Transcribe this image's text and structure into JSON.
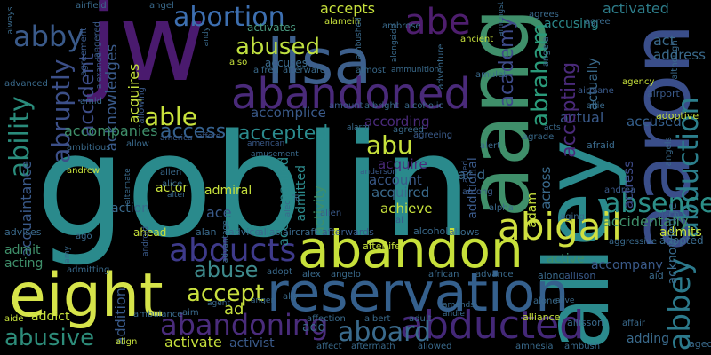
{
  "words": [
    {
      "text": "goblin",
      "color": "#2a8a8c"
    },
    {
      "text": "jw",
      "color": "#4a1a6e"
    },
    {
      "text": "aang",
      "color": "#3f8f6a"
    },
    {
      "text": "alley",
      "color": "#2b8a8d"
    },
    {
      "text": "aaron",
      "color": "#3a4e8a"
    },
    {
      "text": "lisa",
      "color": "#3d5f8c"
    },
    {
      "text": "reservation",
      "color": "#35608d"
    },
    {
      "text": "abandon",
      "color": "#c7e03a"
    },
    {
      "text": "eight",
      "color": "#d6e44a"
    },
    {
      "text": "abandoned",
      "color": "#4a2a7a"
    },
    {
      "text": "abe",
      "color": "#4e1e6e"
    },
    {
      "text": "abigail",
      "color": "#d0e040"
    },
    {
      "text": "abducted",
      "color": "#442878"
    },
    {
      "text": "abduction",
      "color": "#2c7f8c"
    },
    {
      "text": "abbey",
      "color": "#2c7a8c"
    },
    {
      "text": "ability",
      "color": "#2a8c7c"
    },
    {
      "text": "abby",
      "color": "#3a5a8a"
    },
    {
      "text": "abruptly",
      "color": "#3c4f88"
    },
    {
      "text": "abraham",
      "color": "#2a9a7a"
    },
    {
      "text": "academy",
      "color": "#3e4b89"
    },
    {
      "text": "abortion",
      "color": "#3d6fb0"
    },
    {
      "text": "abused",
      "color": "#c0e040"
    },
    {
      "text": "able",
      "color": "#c8e23c"
    },
    {
      "text": "abducts",
      "color": "#3e3a8a"
    },
    {
      "text": "abandoning",
      "color": "#4a2c7c"
    },
    {
      "text": "aboard",
      "color": "#3a6a8c"
    },
    {
      "text": "abusive",
      "color": "#2d8c7a"
    },
    {
      "text": "accept",
      "color": "#c9e03f"
    },
    {
      "text": "abuse",
      "color": "#3e8a8c"
    },
    {
      "text": "absence",
      "color": "#2c8f88"
    },
    {
      "text": "abu",
      "color": "#c7e13c"
    },
    {
      "text": "accident",
      "color": "#3d4d88"
    },
    {
      "text": "accepted",
      "color": "#2b8a8d"
    },
    {
      "text": "access",
      "color": "#35608d"
    },
    {
      "text": "accepts",
      "color": "#c7e13c"
    },
    {
      "text": "activates",
      "color": "#4a9a80"
    },
    {
      "text": "activated",
      "color": "#2d7d8a"
    },
    {
      "text": "accusing",
      "color": "#2c8a8c"
    },
    {
      "text": "act",
      "color": "#3a6a8c"
    },
    {
      "text": "address",
      "color": "#3a6a8c"
    },
    {
      "text": "acknowledges",
      "color": "#3a5a8a"
    },
    {
      "text": "acquires",
      "color": "#c7e13c"
    },
    {
      "text": "accompanies",
      "color": "#3f8f6a"
    },
    {
      "text": "accomplice",
      "color": "#3a5a8a"
    },
    {
      "text": "according",
      "color": "#4a2a7a"
    },
    {
      "text": "actual",
      "color": "#3a5a8a"
    },
    {
      "text": "accepting",
      "color": "#4a2a7a"
    },
    {
      "text": "actually",
      "color": "#3a6a8c"
    },
    {
      "text": "accused",
      "color": "#35608d"
    },
    {
      "text": "actress",
      "color": "#3e4b89"
    },
    {
      "text": "accidentally",
      "color": "#3f8f6a"
    },
    {
      "text": "admits",
      "color": "#c7e13c"
    },
    {
      "text": "adopted",
      "color": "#3a6a8c"
    },
    {
      "text": "acknowledge",
      "color": "#3a6a8c"
    },
    {
      "text": "acquaintance",
      "color": "#3a5a8a"
    },
    {
      "text": "accompanied",
      "color": "#2c8a8c"
    },
    {
      "text": "admitted",
      "color": "#2c8a8c"
    },
    {
      "text": "activity",
      "color": "#3f8f6a"
    },
    {
      "text": "account",
      "color": "#3a5a8a"
    },
    {
      "text": "acquired",
      "color": "#3a6a8c"
    },
    {
      "text": "acquire",
      "color": "#4a2a7a"
    },
    {
      "text": "acid",
      "color": "#3a6a8c"
    },
    {
      "text": "achieve",
      "color": "#c7e13c"
    },
    {
      "text": "additional",
      "color": "#3a5a8a"
    },
    {
      "text": "across",
      "color": "#3a6a8c"
    },
    {
      "text": "adam",
      "color": "#c7e13c"
    },
    {
      "text": "actor",
      "color": "#c7e13c"
    },
    {
      "text": "admiral",
      "color": "#c7e13c"
    },
    {
      "text": "action",
      "color": "#3a6a8c"
    },
    {
      "text": "ace",
      "color": "#3a5a8a"
    },
    {
      "text": "active",
      "color": "#3f8f6a"
    },
    {
      "text": "accompany",
      "color": "#3a5a8a"
    },
    {
      "text": "addict",
      "color": "#c7e13c"
    },
    {
      "text": "ad",
      "color": "#c7e13c"
    },
    {
      "text": "add",
      "color": "#3a6a8c"
    },
    {
      "text": "adding",
      "color": "#3a6a8c"
    },
    {
      "text": "activate",
      "color": "#c7e13c"
    },
    {
      "text": "activist",
      "color": "#3a5a8a"
    },
    {
      "text": "admit",
      "color": "#3f8f6a"
    },
    {
      "text": "acting",
      "color": "#3f8f6a"
    },
    {
      "text": "addition",
      "color": "#3a5a8a"
    },
    {
      "text": "afterlife",
      "color": "#c7e13c"
    },
    {
      "text": "alcohol",
      "color": "#3a6a8c"
    },
    {
      "text": "allows",
      "color": "#3a6a8c"
    },
    {
      "text": "alias",
      "color": "#3a6a8c"
    },
    {
      "text": "aircraft",
      "color": "#3a6a8c"
    },
    {
      "text": "afterwards",
      "color": "#3a5a8a"
    },
    {
      "text": "advice",
      "color": "#3a6a8c"
    },
    {
      "text": "alan",
      "color": "#3a6a8c"
    },
    {
      "text": "ahead",
      "color": "#c7e13c"
    },
    {
      "text": "advises",
      "color": "#3a6a8c"
    },
    {
      "text": "ago",
      "color": "#3a6a8c"
    },
    {
      "text": "andrew",
      "color": "#c7e13c"
    },
    {
      "text": "allen",
      "color": "#3a6a8c"
    },
    {
      "text": "alice",
      "color": "#3a6a8c"
    },
    {
      "text": "alter",
      "color": "#3a6a8c"
    },
    {
      "text": "airfield",
      "color": "#3a6a8c"
    },
    {
      "text": "agrees",
      "color": "#3a6a8c"
    },
    {
      "text": "angel",
      "color": "#3a6a8c"
    },
    {
      "text": "alamein",
      "color": "#c7e13c"
    },
    {
      "text": "amongst",
      "color": "#3a6a8c"
    },
    {
      "text": "angela",
      "color": "#3a6a8c"
    },
    {
      "text": "ambrose",
      "color": "#3a6a8c"
    },
    {
      "text": "ancient",
      "color": "#c7e13c"
    },
    {
      "text": "agree",
      "color": "#3a6a8c"
    },
    {
      "text": "agency",
      "color": "#c7e13c"
    },
    {
      "text": "airport",
      "color": "#3a5a8a"
    },
    {
      "text": "airplane",
      "color": "#3a5a8a"
    },
    {
      "text": "although",
      "color": "#3a6a8c"
    },
    {
      "text": "adoptive",
      "color": "#c7e13c"
    },
    {
      "text": "afraid",
      "color": "#3a6a8c"
    },
    {
      "text": "angels",
      "color": "#3a6a8c"
    },
    {
      "text": "allie",
      "color": "#3a6a8c"
    },
    {
      "text": "agrade",
      "color": "#3a6a8c"
    },
    {
      "text": "amulet",
      "color": "#3a6a8c"
    },
    {
      "text": "adventure",
      "color": "#3a6a8c"
    },
    {
      "text": "almost",
      "color": "#3a6a8c"
    },
    {
      "text": "albright",
      "color": "#3a6a8c"
    },
    {
      "text": "alcoholic",
      "color": "#3a6a8c"
    },
    {
      "text": "agreed",
      "color": "#3a6a8c"
    },
    {
      "text": "agreeing",
      "color": "#3a5a8a"
    },
    {
      "text": "alert",
      "color": "#3a6a8c"
    },
    {
      "text": "amount",
      "color": "#3a5a8a"
    },
    {
      "text": "ambitious",
      "color": "#3a6a8c"
    },
    {
      "text": "amid",
      "color": "#3a6a8c"
    },
    {
      "text": "allowing",
      "color": "#3a5a8a"
    },
    {
      "text": "alexander",
      "color": "#3a5a8a"
    },
    {
      "text": "advanced",
      "color": "#3a6a8c"
    },
    {
      "text": "always",
      "color": "#3a6a8c"
    },
    {
      "text": "agreement",
      "color": "#3a5a8a"
    },
    {
      "text": "angered",
      "color": "#3a5a8a"
    },
    {
      "text": "also",
      "color": "#c7e13c"
    },
    {
      "text": "alfred",
      "color": "#3a6a8c"
    },
    {
      "text": "afterward",
      "color": "#3a6a8c"
    },
    {
      "text": "accuses",
      "color": "#3a6a8c"
    },
    {
      "text": "alongside",
      "color": "#3a6a8c"
    },
    {
      "text": "ambushed",
      "color": "#3a6a8c"
    },
    {
      "text": "african",
      "color": "#3a6a8c"
    },
    {
      "text": "advance",
      "color": "#3a6a8c"
    },
    {
      "text": "along",
      "color": "#3a6a8c"
    },
    {
      "text": "allison",
      "color": "#3a5a8a"
    },
    {
      "text": "aid",
      "color": "#3a6a8c"
    },
    {
      "text": "alien",
      "color": "#3a5a8a"
    },
    {
      "text": "alpha",
      "color": "#3a6a8c"
    },
    {
      "text": "among",
      "color": "#3a5a8a"
    },
    {
      "text": "aging",
      "color": "#3a6a8c"
    },
    {
      "text": "andrea",
      "color": "#3a5a8a"
    },
    {
      "text": "alerted",
      "color": "#3a5a8a"
    },
    {
      "text": "aggressive",
      "color": "#3a6a8c"
    },
    {
      "text": "alex",
      "color": "#3a6a8c"
    },
    {
      "text": "angelo",
      "color": "#3a6a8c"
    },
    {
      "text": "adopt",
      "color": "#3a6a8c"
    },
    {
      "text": "ally",
      "color": "#3a6a8c"
    },
    {
      "text": "aide",
      "color": "#c7e13c"
    },
    {
      "text": "ambulance",
      "color": "#3a6a8c"
    },
    {
      "text": "aim",
      "color": "#3a6a8c"
    },
    {
      "text": "agent",
      "color": "#3a6a8c"
    },
    {
      "text": "anger",
      "color": "#3a6a8c"
    },
    {
      "text": "affection",
      "color": "#3a6a8c"
    },
    {
      "text": "albert",
      "color": "#3a6a8c"
    },
    {
      "text": "adult",
      "color": "#3a6a8c"
    },
    {
      "text": "amends",
      "color": "#3a6a8c"
    },
    {
      "text": "andie",
      "color": "#3a6a8c"
    },
    {
      "text": "alone",
      "color": "#3a6a8c"
    },
    {
      "text": "alliance",
      "color": "#c7e13c"
    },
    {
      "text": "allisson",
      "color": "#3a6a8c"
    },
    {
      "text": "affair",
      "color": "#3a6a8c"
    },
    {
      "text": "aged",
      "color": "#3a6a8c"
    },
    {
      "text": "align",
      "color": "#c7e13c"
    },
    {
      "text": "affect",
      "color": "#3a6a8c"
    },
    {
      "text": "aftermath",
      "color": "#3a6a8c"
    },
    {
      "text": "allowed",
      "color": "#3a6a8c"
    },
    {
      "text": "amnesia",
      "color": "#3a6a8c"
    },
    {
      "text": "ambush",
      "color": "#3a6a8c"
    },
    {
      "text": "advantage",
      "color": "#3a6a8c"
    },
    {
      "text": "alec",
      "color": "#3a6a8c"
    },
    {
      "text": "all",
      "color": "#3a6a8c"
    },
    {
      "text": "al",
      "color": "#3a5a8a"
    },
    {
      "text": "anderson",
      "color": "#3a5a8a"
    },
    {
      "text": "aided",
      "color": "#3a5a8a"
    },
    {
      "text": "alternate",
      "color": "#3a6a8c"
    },
    {
      "text": "allow",
      "color": "#3a6a8c"
    },
    {
      "text": "america",
      "color": "#3a5a8a"
    },
    {
      "text": "afford",
      "color": "#3a5a8a"
    },
    {
      "text": "american",
      "color": "#3a5a8a"
    },
    {
      "text": "amusement",
      "color": "#3a6a8c"
    },
    {
      "text": "android",
      "color": "#3a5a8a"
    },
    {
      "text": "amy",
      "color": "#3a6a8c"
    },
    {
      "text": "admitting",
      "color": "#3a6a8c"
    },
    {
      "text": "ammunition",
      "color": "#3a6a8c"
    },
    {
      "text": "alarm",
      "color": "#3a6a8c"
    },
    {
      "text": "andy",
      "color": "#3a6a8c"
    },
    {
      "text": "acts",
      "color": "#3a6a8c"
    },
    {
      "text": "alive",
      "color": "#3a6a8c"
    }
  ]
}
